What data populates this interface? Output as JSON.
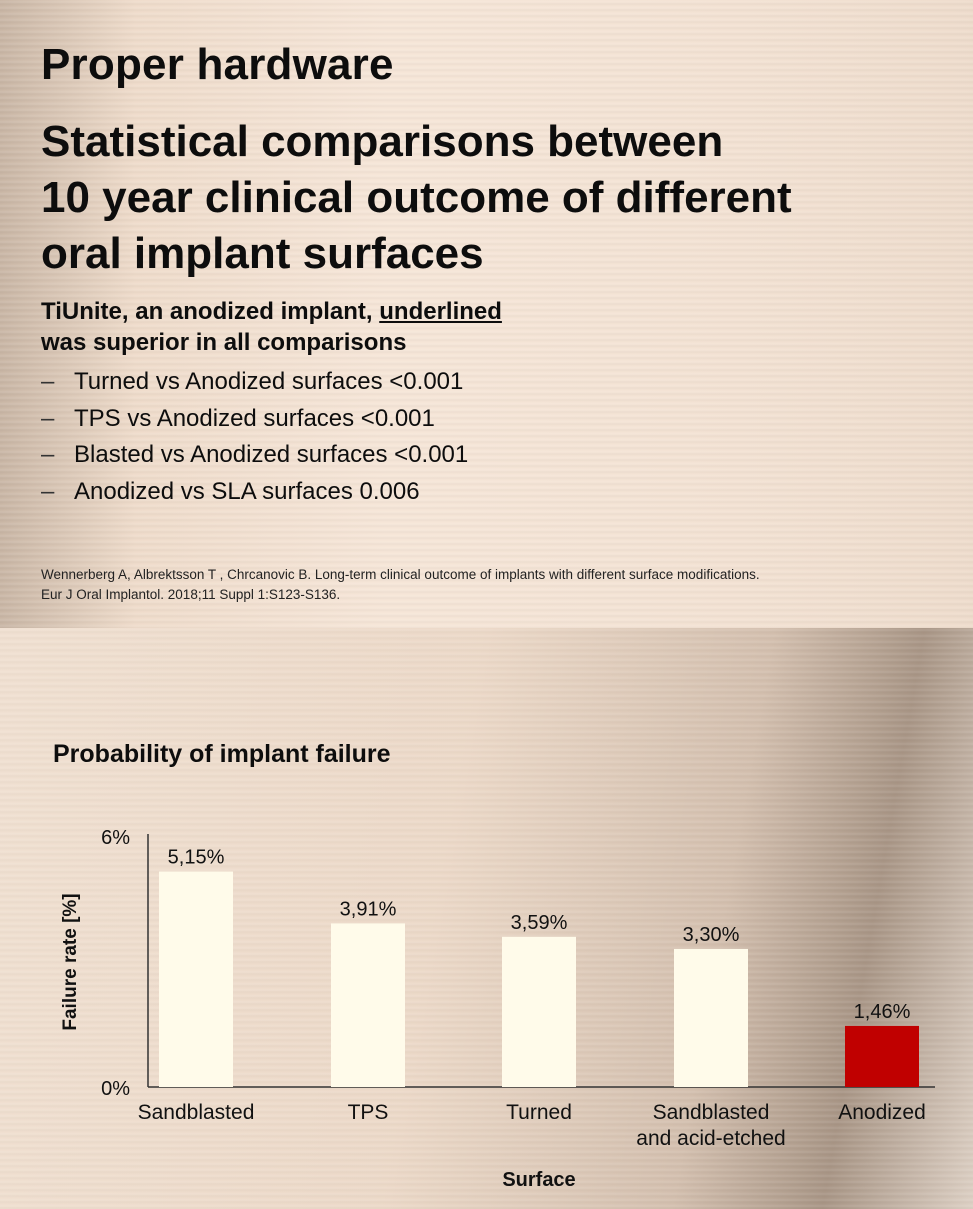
{
  "slide": {
    "title": "Proper hardware",
    "subtitle_lines": [
      "Statistical comparisons between",
      "10 year clinical outcome of different",
      "oral implant surfaces"
    ],
    "lead_text_a": "TiUnite, an anodized implant, ",
    "lead_text_underlined": "underlined",
    "lead_text_b": "was superior in all comparisons",
    "bullet_marker": "–",
    "bullets": [
      "Turned vs Anodized surfaces <0.001",
      "TPS vs Anodized surfaces <0.001",
      "Blasted vs Anodized surfaces <0.001",
      "Anodized vs SLA surfaces 0.006"
    ],
    "reference_lines": [
      "Wennerberg A, Albrektsson T , Chrcanovic B. Long-term clinical outcome of implants with different surface modifications.",
      "Eur J Oral Implantol. 2018;11 Suppl 1:S123-S136."
    ]
  },
  "chart_data": {
    "type": "bar",
    "title": "Probability of implant failure",
    "xlabel": "Surface",
    "ylabel": "Failure rate [%]",
    "ylim": [
      0,
      6
    ],
    "yticks": [
      "0%",
      "6%"
    ],
    "grid": false,
    "categories": [
      "Sandblasted",
      "TPS",
      "Turned",
      "Sandblasted and acid-etched",
      "Anodized"
    ],
    "category_label_lines": [
      [
        "Sandblasted"
      ],
      [
        "TPS"
      ],
      [
        "Turned"
      ],
      [
        "Sandblasted",
        "and acid-etched"
      ],
      [
        "Anodized"
      ]
    ],
    "values": [
      5.15,
      3.91,
      3.59,
      3.3,
      1.46
    ],
    "value_labels": [
      "5,15%",
      "3,91%",
      "3,59%",
      "3,30%",
      "1,46%"
    ],
    "colors": {
      "default_bar": "#fffbea",
      "highlight_bar": "#c00000",
      "highlight_category": "Anodized",
      "axis": "#333333"
    }
  }
}
